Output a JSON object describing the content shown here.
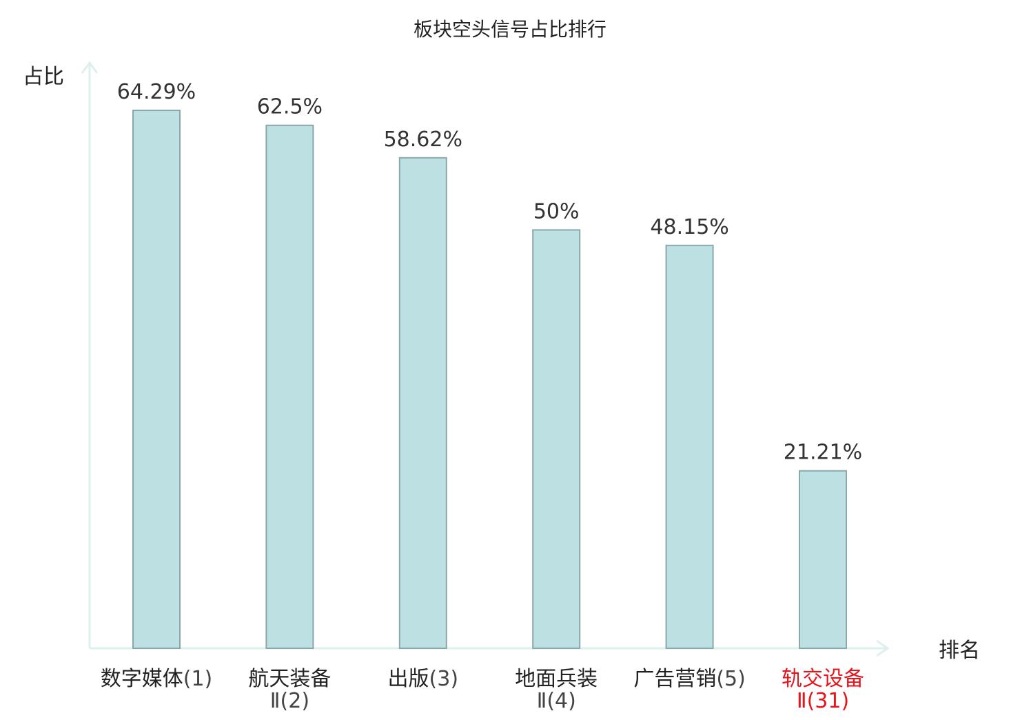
{
  "chart_data": {
    "type": "bar",
    "title": "板块空头信号占比排行",
    "ylabel": "占比",
    "xlabel": "排名",
    "categories": [
      {
        "name": "数字媒体",
        "rank": "(1)",
        "value": 64.29,
        "value_label": "64.29%",
        "highlight": false
      },
      {
        "name": "航天装备",
        "rank": "Ⅱ(2)",
        "value": 62.5,
        "value_label": "62.5%",
        "highlight": false
      },
      {
        "name": "出版",
        "rank": "(3)",
        "value": 58.62,
        "value_label": "58.62%",
        "highlight": false
      },
      {
        "name": "地面兵装",
        "rank": "Ⅱ(4)",
        "value": 50,
        "value_label": "50%",
        "highlight": false
      },
      {
        "name": "广告营销",
        "rank": "(5)",
        "value": 48.15,
        "value_label": "48.15%",
        "highlight": false
      },
      {
        "name": "轨交设备",
        "rank": "Ⅱ(31)",
        "value": 21.21,
        "value_label": "21.21%",
        "highlight": true
      }
    ],
    "ylim": [
      0,
      75
    ],
    "grid": false,
    "legend": "none",
    "colors": {
      "bar_fill": "#bde0e2",
      "bar_stroke": "#8aa8aa",
      "axis": "#dcf0ee",
      "text": "#333333",
      "highlight": "#e8141b"
    }
  }
}
